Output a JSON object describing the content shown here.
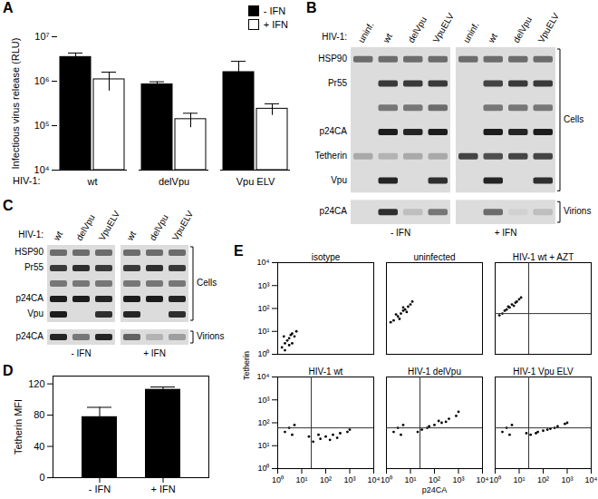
{
  "chart_data": [
    {
      "panel": "A",
      "type": "bar",
      "ylabel": "Infectious virus release (RLU)",
      "group_label": "HIV-1:",
      "categories": [
        "wt",
        "delVpu",
        "Vpu ELV"
      ],
      "series": [
        {
          "name": "- IFN",
          "color": "#000000",
          "values": [
            3500000,
            850000,
            1600000
          ],
          "errors": [
            800000,
            120000,
            1200000
          ]
        },
        {
          "name": "+ IFN",
          "color": "#ffffff",
          "values": [
            1100000,
            140000,
            240000
          ],
          "errors": [
            500000,
            50000,
            70000
          ]
        }
      ],
      "log": "y",
      "ylim": [
        10000,
        10000000
      ],
      "yticks": [
        {
          "value": 10000,
          "label": "10⁴"
        },
        {
          "value": 100000,
          "label": "10⁵"
        },
        {
          "value": 1000000,
          "label": "10⁶"
        },
        {
          "value": 10000000,
          "label": "10⁷"
        }
      ],
      "legend": "top-right"
    },
    {
      "panel": "D",
      "type": "bar",
      "ylabel": "Tetherin MFI",
      "categories": [
        "- IFN",
        "+ IFN"
      ],
      "values": [
        78,
        113
      ],
      "errors": [
        12,
        3
      ],
      "color": "#000000",
      "ylim": [
        0,
        130
      ],
      "yticks": [
        0,
        40,
        80,
        120
      ]
    },
    {
      "panel": "E",
      "type": "scatter",
      "xlabel": "p24CA",
      "ylabel": "Tetherin",
      "log": true,
      "color": "#000000",
      "xlim": [
        1,
        10000
      ],
      "ylim": [
        1,
        10000
      ],
      "xticks": [
        {
          "value": 1,
          "label": "10⁰"
        },
        {
          "value": 10,
          "label": "10¹"
        },
        {
          "value": 100,
          "label": "10²"
        },
        {
          "value": 1000,
          "label": "10³"
        },
        {
          "value": 10000,
          "label": "10⁴"
        }
      ],
      "yticks": [
        {
          "value": 1,
          "label": "10⁰"
        },
        {
          "value": 10,
          "label": "10¹"
        },
        {
          "value": 100,
          "label": "10²"
        },
        {
          "value": 1000,
          "label": "10³"
        },
        {
          "value": 10000,
          "label": "10⁴"
        }
      ],
      "panels": [
        {
          "title": "isotype",
          "points": [
            [
              2,
              3
            ],
            [
              3,
              5
            ],
            [
              1.5,
              2
            ],
            [
              4,
              8
            ],
            [
              2.5,
              4
            ],
            [
              5,
              6
            ],
            [
              3,
              2.5
            ],
            [
              1.8,
              6
            ],
            [
              6,
              10
            ],
            [
              2,
              1.5
            ],
            [
              4,
              3
            ],
            [
              3.5,
              7
            ]
          ]
        },
        {
          "title": "uninfected",
          "points": [
            [
              2,
              30
            ],
            [
              3,
              45
            ],
            [
              5,
              80
            ],
            [
              8,
              120
            ],
            [
              4,
              60
            ],
            [
              6,
              90
            ],
            [
              10,
              150
            ],
            [
              2.5,
              55
            ],
            [
              3.5,
              35
            ],
            [
              7,
              70
            ],
            [
              12,
              200
            ],
            [
              1.5,
              25
            ],
            [
              5,
              110
            ]
          ]
        },
        {
          "title": "HIV-1 wt + AZT",
          "gate": {
            "x": 25,
            "y": 60
          },
          "points": [
            [
              2,
              60
            ],
            [
              3,
              90
            ],
            [
              5,
              150
            ],
            [
              8,
              200
            ],
            [
              4,
              110
            ],
            [
              6,
              130
            ],
            [
              10,
              250
            ],
            [
              2.5,
              80
            ],
            [
              3.5,
              120
            ],
            [
              7,
              180
            ],
            [
              12,
              300
            ],
            [
              1.5,
              50
            ]
          ]
        },
        {
          "title": "HIV-1 wt",
          "gate": {
            "x": 25,
            "y": 60
          },
          "points": [
            [
              2,
              40
            ],
            [
              3,
              60
            ],
            [
              5,
              80
            ],
            [
              4,
              30
            ],
            [
              30,
              15
            ],
            [
              60,
              20
            ],
            [
              100,
              25
            ],
            [
              200,
              30
            ],
            [
              400,
              35
            ],
            [
              800,
              40
            ],
            [
              50,
              30
            ],
            [
              150,
              18
            ],
            [
              300,
              22
            ],
            [
              20,
              25
            ],
            [
              1000,
              50
            ]
          ]
        },
        {
          "title": "HIV-1 delVpu",
          "gate": {
            "x": 25,
            "y": 60
          },
          "points": [
            [
              2,
              40
            ],
            [
              3,
              60
            ],
            [
              5,
              80
            ],
            [
              4,
              30
            ],
            [
              30,
              50
            ],
            [
              60,
              70
            ],
            [
              100,
              80
            ],
            [
              200,
              100
            ],
            [
              400,
              150
            ],
            [
              800,
              200
            ],
            [
              50,
              60
            ],
            [
              150,
              120
            ],
            [
              300,
              110
            ],
            [
              20,
              40
            ],
            [
              1000,
              300
            ]
          ]
        },
        {
          "title": "HIV-1 Vpu ELV",
          "gate": {
            "x": 25,
            "y": 60
          },
          "points": [
            [
              2,
              40
            ],
            [
              3,
              60
            ],
            [
              5,
              80
            ],
            [
              4,
              30
            ],
            [
              30,
              30
            ],
            [
              60,
              40
            ],
            [
              100,
              45
            ],
            [
              200,
              55
            ],
            [
              400,
              70
            ],
            [
              800,
              90
            ],
            [
              50,
              35
            ],
            [
              150,
              50
            ],
            [
              300,
              60
            ],
            [
              20,
              35
            ],
            [
              1000,
              100
            ]
          ]
        }
      ]
    }
  ],
  "blots": [
    {
      "panel": "B",
      "row_label": "HIV-1:",
      "groups": [
        "- IFN",
        "+ IFN"
      ],
      "lanes": [
        "uninf.",
        "wt",
        "delVpu",
        "VpuELV"
      ],
      "rows": [
        {
          "label": "HSP90",
          "fraction": "Cells",
          "intensity": [
            0.55,
            0.55,
            0.55,
            0.55,
            0.55,
            0.55,
            0.55,
            0.55
          ]
        },
        {
          "label": "Pr55",
          "fraction": "Cells",
          "intensity": [
            0,
            0.8,
            0.8,
            0.8,
            0,
            0.75,
            0.8,
            0.8
          ]
        },
        {
          "label": null,
          "fraction": "Cells",
          "intensity": [
            0,
            0.5,
            0.5,
            0.55,
            0,
            0.5,
            0.5,
            0.5
          ]
        },
        {
          "label": "p24CA",
          "fraction": "Cells",
          "intensity": [
            0,
            0.95,
            0.9,
            0.95,
            0,
            0.95,
            0.9,
            0.95
          ]
        },
        {
          "label": "Tetherin",
          "fraction": "Cells",
          "intensity": [
            0.25,
            0.2,
            0.25,
            0.25,
            0.75,
            0.7,
            0.75,
            0.75
          ]
        },
        {
          "label": "Vpu",
          "fraction": "Cells",
          "intensity": [
            0,
            0.9,
            0,
            0.85,
            0,
            0.9,
            0,
            0.85
          ]
        },
        {
          "label": "p24CA",
          "fraction": "Virions",
          "intensity": [
            0,
            0.85,
            0.15,
            0.5,
            0,
            0.55,
            0.05,
            0.15
          ]
        }
      ]
    },
    {
      "panel": "C",
      "row_label": "HIV-1:",
      "groups": [
        "- IFN",
        "+ IFN"
      ],
      "lanes": [
        "wt",
        "delVpu",
        "VpuELV"
      ],
      "rows": [
        {
          "label": "HSP90",
          "fraction": "Cells",
          "intensity": [
            0.55,
            0.55,
            0.55,
            0.55,
            0.55,
            0.55
          ]
        },
        {
          "label": "Pr55",
          "fraction": "Cells",
          "intensity": [
            0.8,
            0.85,
            0.8,
            0.8,
            0.85,
            0.8
          ]
        },
        {
          "label": null,
          "fraction": "Cells",
          "intensity": [
            0.5,
            0.5,
            0.5,
            0.5,
            0.5,
            0.5
          ]
        },
        {
          "label": "p24CA",
          "fraction": "Cells",
          "intensity": [
            0.95,
            0.95,
            0.9,
            0.95,
            0.95,
            0.9
          ]
        },
        {
          "label": "Vpu",
          "fraction": "Cells",
          "intensity": [
            0.95,
            0,
            0.85,
            0.9,
            0,
            0.85
          ]
        },
        {
          "label": "p24CA",
          "fraction": "Virions",
          "intensity": [
            0.9,
            0.5,
            0.9,
            0.6,
            0.2,
            0.3
          ]
        }
      ]
    }
  ]
}
